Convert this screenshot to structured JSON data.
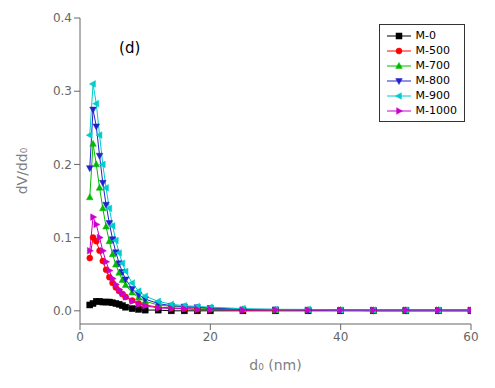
{
  "chart_data": {
    "type": "line",
    "annotations": [
      "(d)"
    ],
    "x_label": "d₀ (nm)",
    "y_label": "dV/dd₀",
    "xlim": [
      0,
      60
    ],
    "ylim": [
      -0.018,
      0.4
    ],
    "xticks": [
      0,
      20,
      40,
      60
    ],
    "yticks": [
      {
        "value": 0.0,
        "label": "0.0"
      },
      0.1,
      0.2,
      0.3,
      0.4
    ],
    "grid": false,
    "legend": "upper right",
    "x": [
      1.5,
      2.0,
      2.5,
      3.0,
      3.5,
      4.0,
      4.5,
      5.0,
      5.5,
      6.0,
      6.5,
      7.0,
      8.0,
      9.0,
      10.0,
      12.0,
      14.0,
      16.0,
      18.0,
      20.0,
      25.0,
      30.0,
      35.0,
      40.0,
      45.0,
      50.0,
      55.0,
      60.0
    ],
    "series": [
      {
        "name": "M-0",
        "color": "#000000",
        "marker": "square",
        "values": [
          0.008,
          0.01,
          0.013,
          0.013,
          0.012,
          0.012,
          0.012,
          0.011,
          0.01,
          0.009,
          0.007,
          0.005,
          0.003,
          0.002,
          0.001,
          0.001,
          0.0,
          0.0,
          0.0,
          0.0,
          0.0,
          0.0,
          0.0,
          0.0,
          0.0,
          0.0,
          0.0,
          0.0
        ]
      },
      {
        "name": "M-500",
        "color": "#ff0000",
        "marker": "circle",
        "values": [
          0.072,
          0.1,
          0.095,
          0.082,
          0.068,
          0.056,
          0.046,
          0.038,
          0.032,
          0.027,
          0.023,
          0.019,
          0.014,
          0.01,
          0.008,
          0.005,
          0.004,
          0.003,
          0.002,
          0.002,
          0.001,
          0.001,
          0.001,
          0.001,
          0.0,
          0.0,
          0.0,
          0.0
        ]
      },
      {
        "name": "M-700",
        "color": "#00bb00",
        "marker": "triangle-up",
        "values": [
          0.155,
          0.228,
          0.2,
          0.168,
          0.14,
          0.115,
          0.095,
          0.077,
          0.063,
          0.052,
          0.042,
          0.035,
          0.025,
          0.018,
          0.013,
          0.008,
          0.006,
          0.005,
          0.004,
          0.003,
          0.002,
          0.001,
          0.001,
          0.001,
          0.001,
          0.001,
          0.001,
          0.001
        ]
      },
      {
        "name": "M-800",
        "color": "#2222cc",
        "marker": "triangle-down",
        "values": [
          0.195,
          0.275,
          0.252,
          0.212,
          0.175,
          0.145,
          0.12,
          0.098,
          0.08,
          0.065,
          0.053,
          0.043,
          0.03,
          0.022,
          0.016,
          0.01,
          0.007,
          0.006,
          0.005,
          0.004,
          0.002,
          0.002,
          0.001,
          0.001,
          0.001,
          0.001,
          0.001,
          0.001
        ]
      },
      {
        "name": "M-900",
        "color": "#00cccc",
        "marker": "triangle-left",
        "values": [
          0.24,
          0.31,
          0.283,
          0.24,
          0.2,
          0.168,
          0.14,
          0.116,
          0.096,
          0.079,
          0.065,
          0.054,
          0.038,
          0.027,
          0.02,
          0.013,
          0.009,
          0.007,
          0.006,
          0.005,
          0.003,
          0.002,
          0.002,
          0.001,
          0.001,
          0.001,
          0.001,
          0.001
        ]
      },
      {
        "name": "M-1000",
        "color": "#cc00cc",
        "marker": "triangle-right",
        "values": [
          0.082,
          0.128,
          0.118,
          0.1,
          0.082,
          0.067,
          0.055,
          0.044,
          0.036,
          0.029,
          0.024,
          0.019,
          0.013,
          0.009,
          0.007,
          0.004,
          0.003,
          0.003,
          0.002,
          0.002,
          0.001,
          0.001,
          0.001,
          0.001,
          0.001,
          0.001,
          0.001,
          0.001
        ]
      }
    ]
  }
}
